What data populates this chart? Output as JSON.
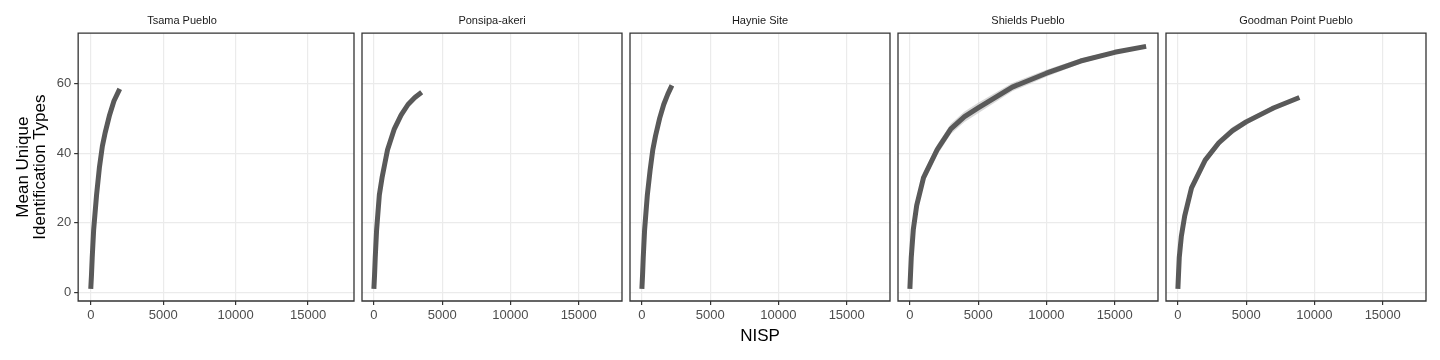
{
  "chart_data": [
    {
      "type": "line",
      "title": "Tsama Pueblo",
      "ylabel": "Mean Unique\nIdentification Types",
      "xlim": [
        -870,
        18170
      ],
      "xticks": [
        0,
        5000,
        10000,
        15000
      ],
      "ylim": [
        -2.5,
        74.5
      ],
      "yticks": [
        0,
        20,
        40,
        60
      ],
      "grid": true,
      "series": [
        {
          "color": "#595959",
          "x": [
            0,
            50,
            100,
            200,
            400,
            600,
            800,
            1000,
            1300,
            1600,
            2000
          ],
          "values": [
            1,
            5,
            10,
            18,
            28,
            36,
            42,
            46,
            51,
            55,
            58.5
          ]
        }
      ]
    },
    {
      "type": "line",
      "title": "Ponsipa-akeri",
      "xlim": [
        -870,
        18170
      ],
      "xticks": [
        0,
        5000,
        10000,
        15000
      ],
      "ylim": [
        -2.5,
        74.5
      ],
      "yticks": [
        0,
        20,
        40,
        60
      ],
      "grid": true,
      "tick_labels": "x",
      "series": [
        {
          "color": "#595959",
          "x": [
            0,
            50,
            100,
            200,
            400,
            600,
            800,
            1000,
            1500,
            2000,
            2500,
            3000,
            3500
          ],
          "values": [
            1,
            5,
            10,
            18,
            28,
            33,
            37,
            41,
            47,
            51,
            54,
            56,
            57.5
          ]
        }
      ]
    },
    {
      "type": "line",
      "title": "Haynie Site",
      "xlabel": "NISP",
      "xlim": [
        -870,
        18170
      ],
      "xticks": [
        0,
        5000,
        10000,
        15000
      ],
      "ylim": [
        -2.5,
        74.5
      ],
      "yticks": [
        0,
        20,
        40,
        60
      ],
      "grid": true,
      "tick_labels": "x",
      "series": [
        {
          "color": "#595959",
          "x": [
            0,
            50,
            100,
            200,
            400,
            600,
            800,
            1000,
            1300,
            1600,
            1900,
            2200
          ],
          "values": [
            1,
            5,
            10,
            18,
            28,
            35,
            41,
            45,
            50,
            54,
            57,
            59.5
          ]
        }
      ]
    },
    {
      "type": "line",
      "title": "Shields Pueblo",
      "xlim": [
        -870,
        18170
      ],
      "xticks": [
        0,
        5000,
        10000,
        15000
      ],
      "ylim": [
        -2.5,
        74.5
      ],
      "yticks": [
        0,
        20,
        40,
        60
      ],
      "grid": true,
      "tick_labels": "x",
      "series": [
        {
          "color": "#595959",
          "x": [
            0,
            100,
            250,
            500,
            1000,
            2000,
            3000,
            4000,
            5000,
            7500,
            10000,
            12500,
            15000,
            17300
          ],
          "values": [
            1,
            10,
            18,
            25,
            33,
            41,
            47,
            50.5,
            53,
            59,
            63,
            66.5,
            69,
            70.7
          ],
          "lower": [
            1,
            9.5,
            17,
            23.5,
            31.5,
            39.5,
            45.5,
            49,
            51.5,
            57.8,
            62,
            65.8,
            68.5,
            70.5
          ],
          "upper": [
            1,
            10.5,
            19,
            26.5,
            34.5,
            42.5,
            48.5,
            52,
            54.5,
            60.2,
            64,
            67.2,
            69.5,
            70.9
          ]
        }
      ]
    },
    {
      "type": "line",
      "title": "Goodman Point Pueblo",
      "xlim": [
        -870,
        18170
      ],
      "xticks": [
        0,
        5000,
        10000,
        15000
      ],
      "ylim": [
        -2.5,
        74.5
      ],
      "yticks": [
        0,
        20,
        40,
        60
      ],
      "grid": true,
      "tick_labels": "x",
      "series": [
        {
          "color": "#595959",
          "x": [
            0,
            100,
            250,
            500,
            1000,
            2000,
            3000,
            4000,
            5000,
            7000,
            8900
          ],
          "values": [
            1,
            10,
            16,
            22,
            30,
            38,
            43,
            46.5,
            49,
            53,
            56
          ],
          "lower": [
            1,
            9.5,
            15,
            21,
            29,
            37,
            42,
            45.5,
            48.2,
            52.4,
            55.8
          ],
          "upper": [
            1,
            10.5,
            17,
            23,
            31,
            39,
            44,
            47.5,
            49.8,
            53.6,
            56.2
          ]
        }
      ]
    }
  ]
}
